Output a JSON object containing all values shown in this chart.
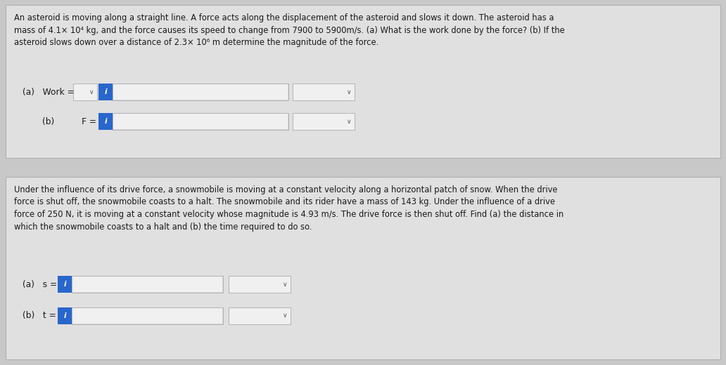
{
  "bg_color": "#c8c8c8",
  "panel_bg": "#e0e0e0",
  "panel_border": "#b0b0b0",
  "text_color": "#1a1a1a",
  "input_bg": "#f0f0f0",
  "input_bg_dark": "#d8d8d8",
  "input_border": "#aaaaaa",
  "blue_btn_color": "#2966cc",
  "blue_btn_text": "i",
  "dropdown_arrow": "∨",
  "problem1_text": "An asteroid is moving along a straight line. A force acts along the displacement of the asteroid and slows it down. The asteroid has a\nmass of 4.1× 10⁴ kg, and the force causes its speed to change from 7900 to 5900m/s. (a) What is the work done by the force? (b) If the\nasteroid slows down over a distance of 2.3× 10⁶ m determine the magnitude of the force.",
  "problem1_a_label": "(a)   Work =",
  "problem1_b_label": "(b)          F =",
  "problem2_text": "Under the influence of its drive force, a snowmobile is moving at a constant velocity along a horizontal patch of snow. When the drive\nforce is shut off, the snowmobile coasts to a halt. The snowmobile and its rider have a mass of 143 kg. Under the influence of a drive\nforce of 250 N, it is moving at a constant velocity whose magnitude is 4.93 m/s. The drive force is then shut off. Find (a) the distance in\nwhich the snowmobile coasts to a halt and (b) the time required to do so.",
  "problem2_a_label": "(a)   s =",
  "problem2_b_label": "(b)   t =",
  "font_size_text": 8.3,
  "font_size_label": 8.8,
  "font_size_btn": 7.5,
  "font_size_arrow": 6.5
}
